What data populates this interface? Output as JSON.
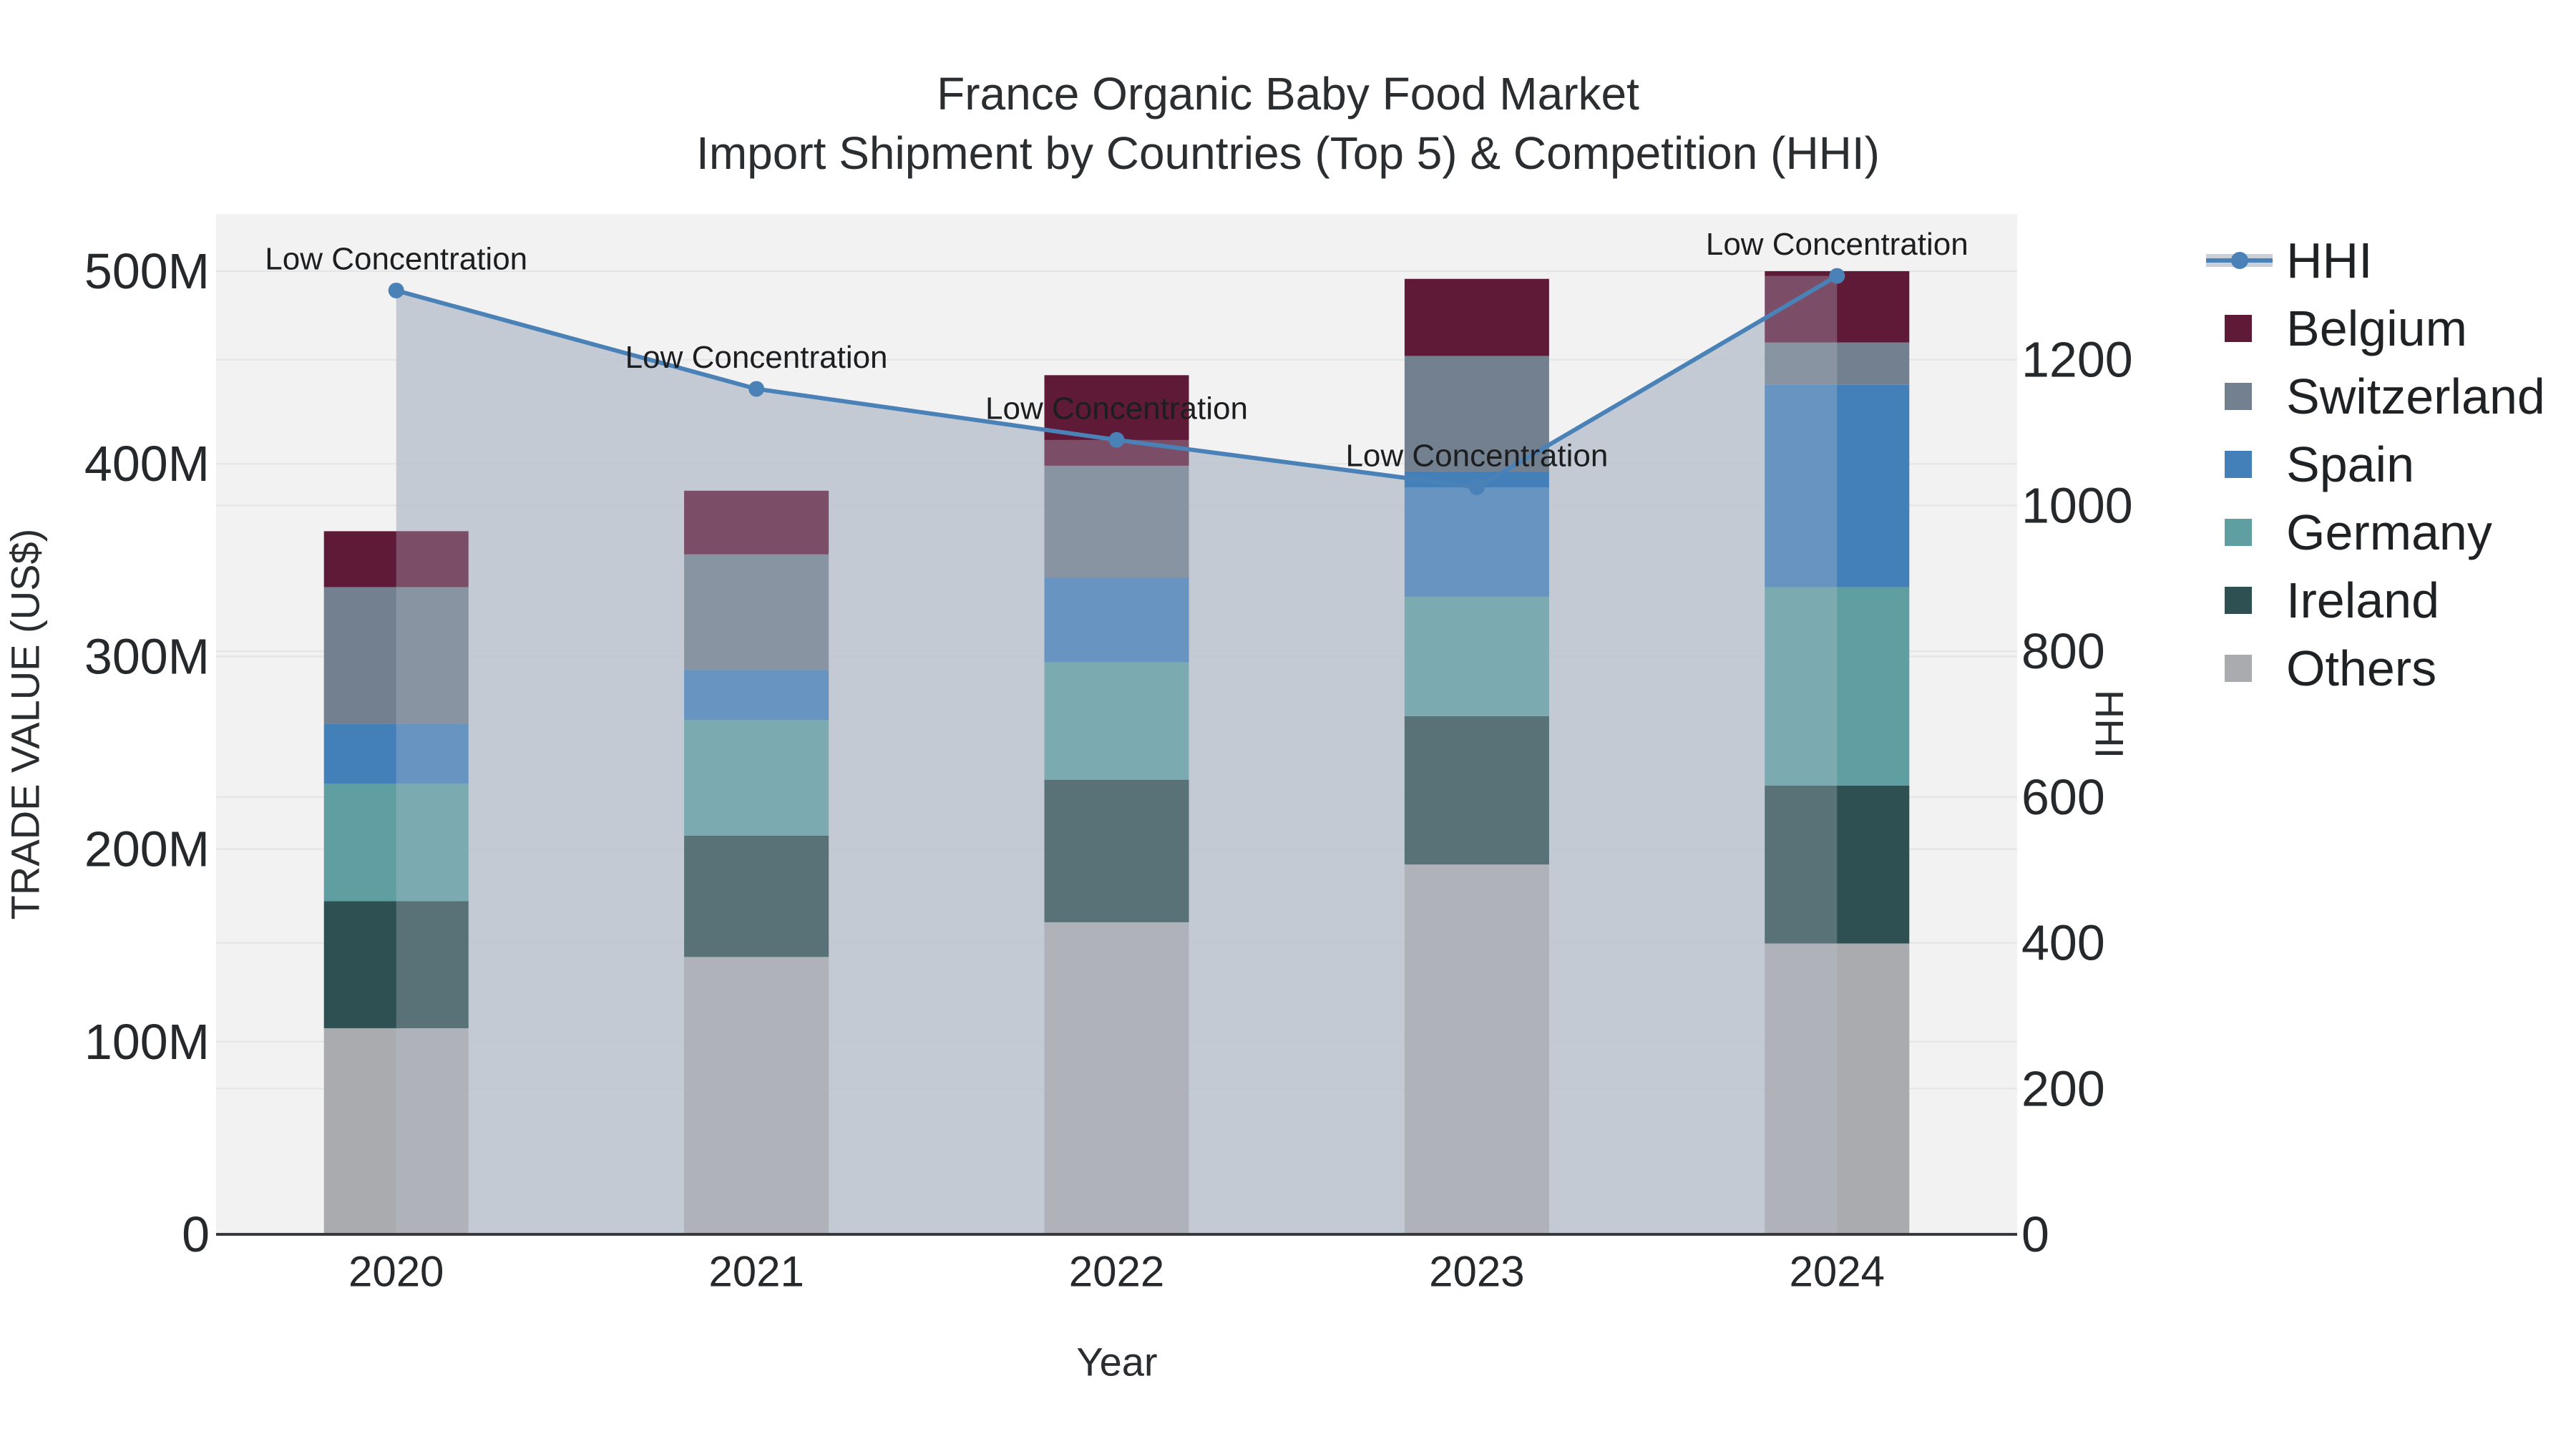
{
  "title": {
    "line1": "France Organic Baby Food Market",
    "line2": "Import Shipment by Countries (Top 5) & Competition (HHI)"
  },
  "axes": {
    "x": {
      "title": "Year",
      "tick_labels": [
        "2020",
        "2021",
        "2022",
        "2023",
        "2024"
      ]
    },
    "left": {
      "title": "TRADE VALUE (US$)",
      "tick_labels": [
        "0",
        "100M",
        "200M",
        "300M",
        "400M",
        "500M"
      ],
      "tick_values": [
        0,
        100,
        200,
        300,
        400,
        500
      ],
      "range": [
        0,
        529.7
      ],
      "unit": "M US$"
    },
    "right": {
      "title": "HHI",
      "tick_labels": [
        "0",
        "200",
        "400",
        "600",
        "800",
        "1000",
        "1200"
      ],
      "tick_values": [
        0,
        200,
        400,
        600,
        800,
        1000,
        1200
      ],
      "range": [
        0,
        1400
      ]
    }
  },
  "legend": {
    "items": [
      {
        "label": "HHI",
        "type": "line",
        "color": "#4a82b8",
        "band_color": "#c9cfd9"
      },
      {
        "label": "Belgium",
        "type": "swatch",
        "color": "#5f1a38"
      },
      {
        "label": "Switzerland",
        "type": "swatch",
        "color": "#72808f"
      },
      {
        "label": "Spain",
        "type": "swatch",
        "color": "#4380ba"
      },
      {
        "label": "Germany",
        "type": "swatch",
        "color": "#5f9fa2"
      },
      {
        "label": "Ireland",
        "type": "swatch",
        "color": "#2f5052"
      },
      {
        "label": "Others",
        "type": "swatch",
        "color": "#a9abae"
      }
    ]
  },
  "annotation_label": "Low Concentration",
  "chart_data": {
    "type": "combo",
    "subtypes": [
      "stacked-bar",
      "line-with-area"
    ],
    "title": "France Organic Baby Food Market — Import Shipment by Countries (Top 5) & Competition (HHI)",
    "categories": [
      "2020",
      "2021",
      "2022",
      "2023",
      "2024"
    ],
    "bar_unit": "M US$",
    "stack_order_bottom_to_top": [
      "Others",
      "Ireland",
      "Germany",
      "Spain",
      "Switzerland",
      "Belgium"
    ],
    "series": [
      {
        "name": "Others",
        "type": "bar",
        "color": "#a9abae",
        "values": [
          107,
          144,
          162,
          192,
          151
        ]
      },
      {
        "name": "Ireland",
        "type": "bar",
        "color": "#2f5052",
        "values": [
          66,
          63,
          74,
          77,
          82
        ]
      },
      {
        "name": "Germany",
        "type": "bar",
        "color": "#5f9fa2",
        "values": [
          61,
          60,
          61,
          62,
          103
        ]
      },
      {
        "name": "Spain",
        "type": "bar",
        "color": "#4380ba",
        "values": [
          31,
          26,
          44,
          65,
          105
        ]
      },
      {
        "name": "Switzerland",
        "type": "bar",
        "color": "#72808f",
        "values": [
          71,
          60,
          58,
          60,
          22
        ]
      },
      {
        "name": "Belgium",
        "type": "bar",
        "color": "#5f1a38",
        "values": [
          29,
          33,
          47,
          40,
          37
        ]
      }
    ],
    "bar_totals": [
      365,
      386,
      446,
      496,
      500
    ],
    "line_series": {
      "name": "HHI",
      "axis": "right",
      "color": "#4a82b8",
      "area_color": "rgba(183,191,204,0.8)",
      "values": [
        1295,
        1160,
        1090,
        1025,
        1315
      ],
      "point_annotations": [
        "Low Concentration",
        "Low Concentration",
        "Low Concentration",
        "Low Concentration",
        "Low Concentration"
      ]
    },
    "ylim_left": [
      0,
      529.7
    ],
    "ylim_right": [
      0,
      1400
    ],
    "xlabel": "Year",
    "ylabel_left": "TRADE VALUE (US$)",
    "ylabel_right": "HHI",
    "grid": true,
    "legend_position": "right"
  }
}
